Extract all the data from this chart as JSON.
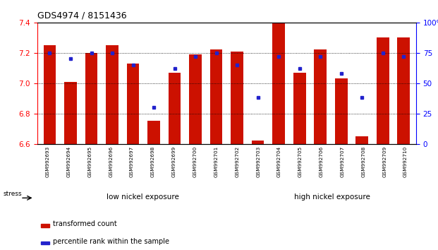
{
  "title": "GDS4974 / 8151436",
  "samples": [
    "GSM992693",
    "GSM992694",
    "GSM992695",
    "GSM992696",
    "GSM992697",
    "GSM992698",
    "GSM992699",
    "GSM992700",
    "GSM992701",
    "GSM992702",
    "GSM992703",
    "GSM992704",
    "GSM992705",
    "GSM992706",
    "GSM992707",
    "GSM992708",
    "GSM992709",
    "GSM992710"
  ],
  "red_values": [
    7.25,
    7.01,
    7.2,
    7.25,
    7.13,
    6.75,
    7.07,
    7.19,
    7.22,
    7.21,
    6.62,
    7.4,
    7.07,
    7.22,
    7.03,
    6.65,
    7.3,
    7.3
  ],
  "blue_values": [
    75,
    70,
    75,
    75,
    65,
    30,
    62,
    72,
    75,
    65,
    38,
    72,
    62,
    72,
    58,
    38,
    75,
    72
  ],
  "ylim_left": [
    6.6,
    7.4
  ],
  "ylim_right": [
    0,
    100
  ],
  "yticks_left": [
    6.6,
    6.8,
    7.0,
    7.2,
    7.4
  ],
  "yticks_right": [
    0,
    25,
    50,
    75,
    100
  ],
  "ytick_labels_right": [
    "0",
    "25",
    "50",
    "75",
    "100%"
  ],
  "bar_color": "#cc1100",
  "dot_color": "#2222cc",
  "group1_label": "low nickel exposure",
  "group2_label": "high nickel exposure",
  "group1_count": 10,
  "group2_count": 8,
  "group1_color": "#aaddaa",
  "group2_color": "#55cc44",
  "stress_label": "stress",
  "legend1": "transformed count",
  "legend2": "percentile rank within the sample",
  "baseline": 6.6
}
